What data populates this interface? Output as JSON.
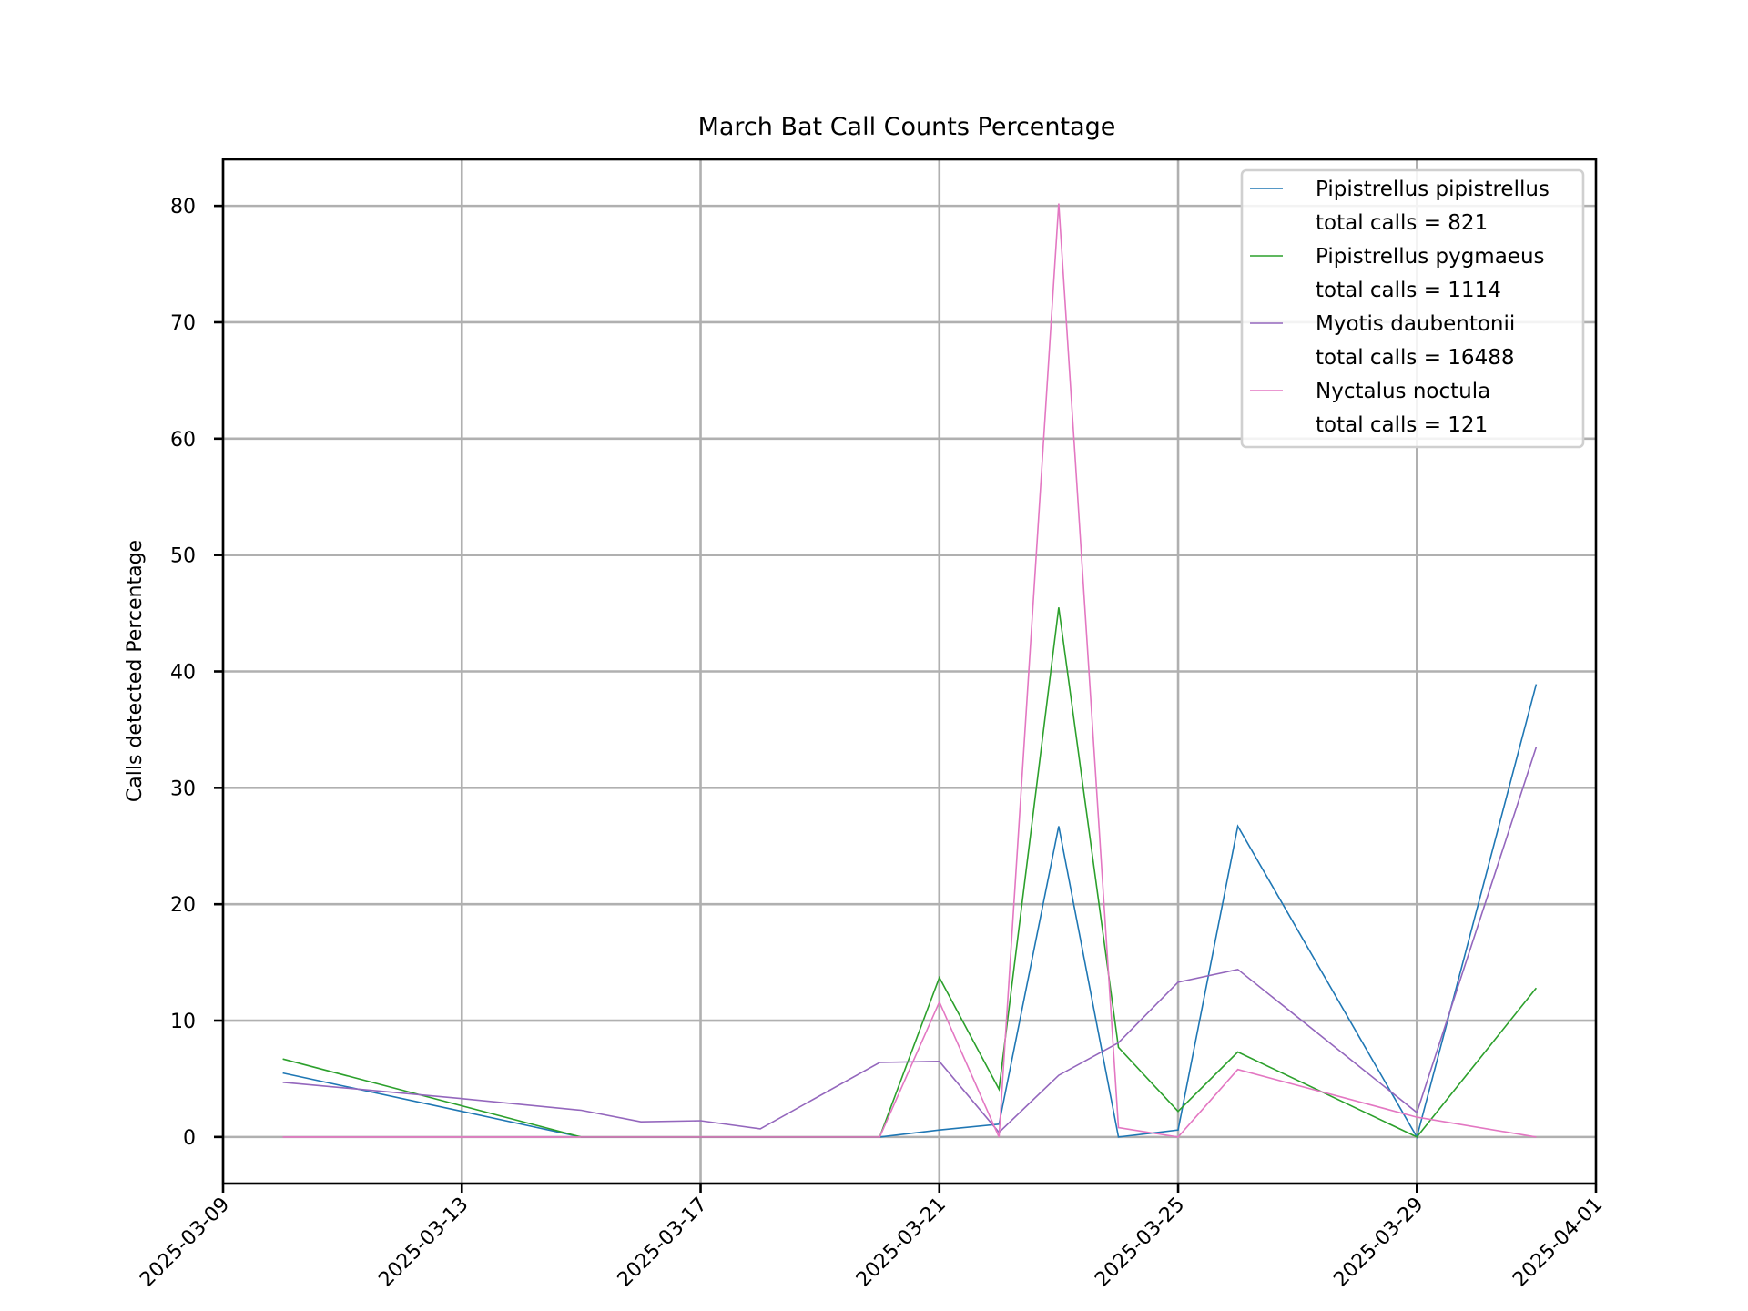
{
  "chart_data": {
    "type": "line",
    "title": "March Bat Call Counts Percentage",
    "xlabel": "",
    "ylabel": "Calls detected Percentage",
    "x_is_date": true,
    "xlim": [
      "2025-03-09",
      "2025-04-01"
    ],
    "ylim": [
      -4,
      84
    ],
    "x_ticks": [
      "2025-03-09",
      "2025-03-13",
      "2025-03-17",
      "2025-03-21",
      "2025-03-25",
      "2025-03-29",
      "2025-04-01"
    ],
    "y_ticks": [
      0,
      10,
      20,
      30,
      40,
      50,
      60,
      70,
      80
    ],
    "grid": true,
    "legend_position": "top-right",
    "series": [
      {
        "name": "Pipistrellus pipistrellus",
        "legend_note": "total calls = 821",
        "color": "#1f77b4",
        "points": [
          [
            "2025-03-10",
            5.5
          ],
          [
            "2025-03-13",
            2.2
          ],
          [
            "2025-03-15",
            0.0
          ],
          [
            "2025-03-20",
            0.0
          ],
          [
            "2025-03-21",
            0.6
          ],
          [
            "2025-03-22",
            1.1
          ],
          [
            "2025-03-23",
            26.7
          ],
          [
            "2025-03-24",
            0.0
          ],
          [
            "2025-03-25",
            0.6
          ],
          [
            "2025-03-26",
            26.7
          ],
          [
            "2025-03-29",
            0.0
          ],
          [
            "2025-03-31",
            38.9
          ]
        ]
      },
      {
        "name": "Pipistrellus pygmaeus",
        "legend_note": "total calls = 1114",
        "color": "#2ca02c",
        "points": [
          [
            "2025-03-10",
            6.7
          ],
          [
            "2025-03-15",
            0.0
          ],
          [
            "2025-03-20",
            0.0
          ],
          [
            "2025-03-21",
            13.7
          ],
          [
            "2025-03-22",
            4.1
          ],
          [
            "2025-03-23",
            45.5
          ],
          [
            "2025-03-24",
            7.7
          ],
          [
            "2025-03-25",
            2.2
          ],
          [
            "2025-03-26",
            7.3
          ],
          [
            "2025-03-29",
            0.0
          ],
          [
            "2025-03-31",
            12.8
          ]
        ]
      },
      {
        "name": "Myotis daubentonii",
        "legend_note": "total calls = 16488",
        "color": "#9467bd",
        "points": [
          [
            "2025-03-10",
            4.7
          ],
          [
            "2025-03-13",
            3.3
          ],
          [
            "2025-03-15",
            2.3
          ],
          [
            "2025-03-16",
            1.3
          ],
          [
            "2025-03-17",
            1.4
          ],
          [
            "2025-03-18",
            0.7
          ],
          [
            "2025-03-20",
            6.4
          ],
          [
            "2025-03-21",
            6.5
          ],
          [
            "2025-03-22",
            0.4
          ],
          [
            "2025-03-23",
            5.3
          ],
          [
            "2025-03-24",
            8.1
          ],
          [
            "2025-03-25",
            13.3
          ],
          [
            "2025-03-26",
            14.4
          ],
          [
            "2025-03-29",
            2.1
          ],
          [
            "2025-03-31",
            33.5
          ]
        ]
      },
      {
        "name": "Nyctalus noctula",
        "legend_note": "total calls = 121",
        "color": "#e377c2",
        "points": [
          [
            "2025-03-10",
            0.0
          ],
          [
            "2025-03-20",
            0.0
          ],
          [
            "2025-03-21",
            11.6
          ],
          [
            "2025-03-22",
            0.0
          ],
          [
            "2025-03-23",
            80.2
          ],
          [
            "2025-03-24",
            0.8
          ],
          [
            "2025-03-25",
            0.0
          ],
          [
            "2025-03-26",
            5.8
          ],
          [
            "2025-03-29",
            1.7
          ],
          [
            "2025-03-31",
            0.0
          ]
        ]
      }
    ]
  }
}
